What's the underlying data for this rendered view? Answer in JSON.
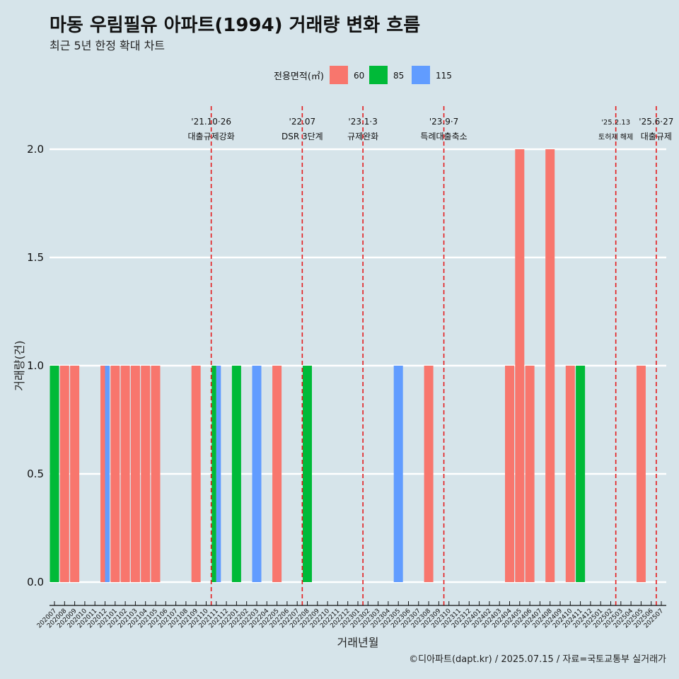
{
  "header": {
    "title": "마동 우림필유 아파트(1994) 거래량 변화 흐름",
    "subtitle": "최근 5년 한정 확대 차트"
  },
  "legend": {
    "title": "전용면적(㎡)",
    "items": [
      {
        "label": "60",
        "color": "#f8766d"
      },
      {
        "label": "85",
        "color": "#00ba38"
      },
      {
        "label": "115",
        "color": "#619cff"
      }
    ]
  },
  "caption": "©디아파트(dapt.kr) / 2025.07.15 / 자료=국토교통부 실거래가",
  "chart_data": {
    "type": "bar",
    "xlabel": "거래년월",
    "ylabel": "거래량(건)",
    "ylim": [
      -0.07,
      2.2
    ],
    "yticks": [
      0.0,
      0.5,
      1.0,
      1.5,
      2.0
    ],
    "ytick_labels": [
      "0.0",
      "0.5",
      "1.0",
      "1.5",
      "2.0"
    ],
    "grid": "horizontal",
    "legend_position": "top",
    "categories": [
      "202007",
      "202008",
      "202009",
      "202010",
      "202011",
      "202012",
      "202101",
      "202102",
      "202103",
      "202104",
      "202105",
      "202106",
      "202107",
      "202108",
      "202109",
      "202110",
      "202111",
      "202112",
      "202201",
      "202202",
      "202203",
      "202204",
      "202205",
      "202206",
      "202207",
      "202208",
      "202209",
      "202210",
      "202211",
      "202212",
      "202301",
      "202302",
      "202303",
      "202304",
      "202305",
      "202306",
      "202307",
      "202308",
      "202309",
      "202310",
      "202311",
      "202312",
      "202401",
      "202402",
      "202403",
      "202404",
      "202405",
      "202406",
      "202407",
      "202408",
      "202409",
      "202410",
      "202411",
      "202412",
      "202501",
      "202502",
      "202503",
      "202504",
      "202505",
      "202506",
      "202507"
    ],
    "series": [
      {
        "name": "60",
        "color": "#f8766d",
        "values": [
          0,
          1,
          1,
          0,
          0,
          1,
          1,
          1,
          1,
          1,
          1,
          0,
          0,
          0,
          1,
          0,
          0,
          0,
          0,
          0,
          0,
          0,
          1,
          0,
          0,
          0,
          0,
          0,
          0,
          0,
          0,
          0,
          0,
          0,
          0,
          0,
          0,
          1,
          0,
          0,
          0,
          0,
          0,
          0,
          0,
          1,
          2,
          1,
          0,
          2,
          0,
          1,
          0,
          0,
          0,
          0,
          0,
          0,
          1,
          0,
          0
        ]
      },
      {
        "name": "85",
        "color": "#00ba38",
        "values": [
          1,
          0,
          0,
          0,
          0,
          0,
          0,
          0,
          0,
          0,
          0,
          0,
          0,
          0,
          0,
          0,
          1,
          0,
          1,
          0,
          0,
          0,
          0,
          0,
          0,
          1,
          0,
          0,
          0,
          0,
          0,
          0,
          0,
          0,
          0,
          0,
          0,
          0,
          0,
          0,
          0,
          0,
          0,
          0,
          0,
          0,
          0,
          0,
          0,
          0,
          0,
          0,
          1,
          0,
          0,
          0,
          0,
          0,
          0,
          0,
          0
        ]
      },
      {
        "name": "115",
        "color": "#619cff",
        "values": [
          0,
          0,
          0,
          0,
          0,
          1,
          0,
          0,
          0,
          0,
          0,
          0,
          0,
          0,
          0,
          0,
          1,
          0,
          0,
          0,
          1,
          0,
          0,
          0,
          0,
          0,
          0,
          0,
          0,
          0,
          0,
          0,
          0,
          0,
          1,
          0,
          0,
          0,
          0,
          0,
          0,
          0,
          0,
          0,
          0,
          0,
          0,
          0,
          0,
          0,
          0,
          0,
          0,
          0,
          0,
          0,
          0,
          0,
          0,
          0,
          0
        ]
      }
    ],
    "events": [
      {
        "x": "202110",
        "date": "'21.10·26",
        "label": "대출규제강화"
      },
      {
        "x": "202207",
        "date": "'22.07",
        "label": "DSR 3단계"
      },
      {
        "x": "202301",
        "date": "'23.1·3",
        "label": "규제완화"
      },
      {
        "x": "202309",
        "date": "'23.9·7",
        "label": "특례대출축소"
      },
      {
        "x": "202502",
        "date": "'25.2.13",
        "label": "토허제 해제"
      },
      {
        "x": "202506",
        "date": "'25.6·27",
        "label": "대출규제"
      }
    ]
  }
}
